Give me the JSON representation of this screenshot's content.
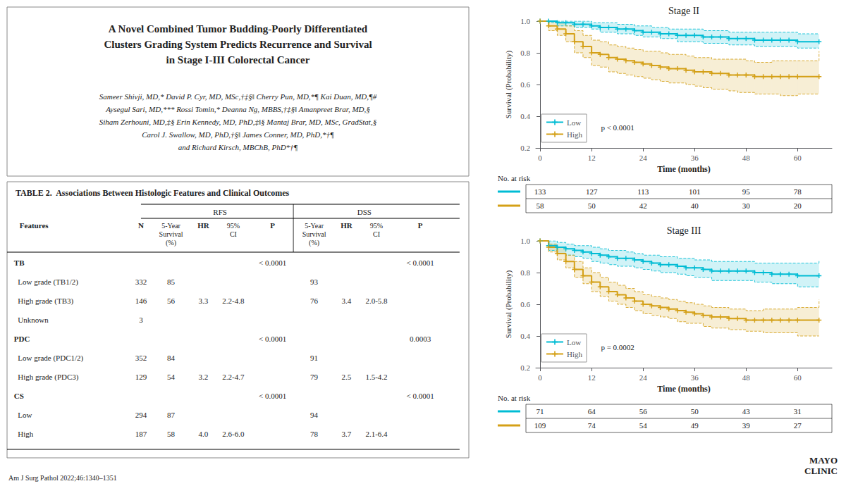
{
  "chart_data": [
    {
      "type": "text",
      "title": "A Novel Combined Tumor Budding-Poorly Differentiated\nClusters Grading System Predicts Recurrence and Survival\nin Stage I-III Colorectal Cancer",
      "annotations": [
        "Sameer Shivji, MD,* David P. Cyr, MD, MSc,†‡§‖ Cherry Pun, MD,*¶ Kai Duan, MD,¶#",
        "Aysegul Sari, MD,*** Rossi Tomin,* Deanna Ng, MBBS,†‡§‖ Amanpreet Brar, MD,§",
        "Siham Zerhouni, MD,‡§ Erin Kennedy, MD, PhD,‡‖§ Mantaj Brar, MD, MSc, GradStat,§",
        "Carol J. Swallow, MD, PhD,†§‖ James Conner, MD, PhD,*†¶",
        "and Richard Kirsch, MBChB, PhD*†¶"
      ]
    },
    {
      "type": "table",
      "title": "TABLE 2.  Associations Between Histologic Features and Clinical Outcomes",
      "columns": [
        "Features",
        "N",
        "5-Year\nSurvival\n(%)",
        "HR",
        "95%\nCI",
        "P",
        "5-Year\nSurvival\n(%)",
        "HR",
        "95%\nCI",
        "P"
      ],
      "column_groups": [
        null,
        null,
        "RFS",
        "RFS",
        "RFS",
        "RFS",
        "DSS",
        "DSS",
        "DSS",
        "DSS"
      ],
      "rows": [
        [
          "TB",
          null,
          null,
          null,
          null,
          "< 0.0001",
          null,
          null,
          null,
          "< 0.0001"
        ],
        [
          "  Low grade (TB1/2)",
          "332",
          "85",
          null,
          null,
          null,
          "93",
          null,
          null,
          null
        ],
        [
          "  High grade (TB3)",
          "146",
          "56",
          "3.3",
          "2.2-4.8",
          null,
          "76",
          "3.4",
          "2.0-5.8",
          null
        ],
        [
          "  Unknown",
          "3",
          null,
          null,
          null,
          null,
          null,
          null,
          null,
          null
        ],
        [
          "PDC",
          null,
          null,
          null,
          null,
          "< 0.0001",
          null,
          null,
          null,
          "0.0003"
        ],
        [
          "  Low grade (PDC1/2)",
          "352",
          "84",
          null,
          null,
          null,
          "91",
          null,
          null,
          null
        ],
        [
          "  High grade (PDC3)",
          "129",
          "54",
          "3.2",
          "2.2-4.7",
          null,
          "79",
          "2.5",
          "1.5-4.2",
          null
        ],
        [
          "CS",
          null,
          null,
          null,
          null,
          "< 0.0001",
          null,
          null,
          null,
          "< 0.0001"
        ],
        [
          "  Low",
          "294",
          "87",
          null,
          null,
          null,
          "94",
          null,
          null,
          null
        ],
        [
          "  High",
          "187",
          "58",
          "4.0",
          "2.6-6.0",
          null,
          "78",
          "3.7",
          "2.1-6.4",
          null
        ]
      ]
    },
    {
      "type": "step",
      "title": "Stage II",
      "x_label": "Time (months)",
      "y_label": "Survival (Probability)",
      "xlim": [
        -1,
        68
      ],
      "xticks": [
        0,
        12,
        24,
        36,
        48,
        60
      ],
      "ylim": [
        0.2,
        1.0
      ],
      "yticks": [
        0.2,
        0.4,
        0.6,
        0.8,
        {
          "value": 1,
          "label": "1.0"
        }
      ],
      "grid": false,
      "legend": "lower left",
      "marker": "+",
      "annotations": [
        "p < 0.0001"
      ],
      "at_risk_label": "No. at risk",
      "series": [
        {
          "name": "Low",
          "color": "#00bcd4",
          "x": [
            0,
            2,
            4,
            6,
            8,
            10,
            12,
            14,
            16,
            18,
            20,
            22,
            24,
            26,
            28,
            30,
            32,
            34,
            36,
            38,
            40,
            42,
            44,
            46,
            48,
            50,
            52,
            54,
            56,
            58,
            60,
            65
          ],
          "values": [
            1.0,
            1.0,
            0.99,
            0.99,
            0.98,
            0.98,
            0.97,
            0.96,
            0.96,
            0.95,
            0.95,
            0.94,
            0.93,
            0.93,
            0.92,
            0.92,
            0.91,
            0.91,
            0.91,
            0.9,
            0.9,
            0.9,
            0.89,
            0.89,
            0.89,
            0.88,
            0.88,
            0.88,
            0.88,
            0.88,
            0.87,
            0.87
          ],
          "ci_upper": [
            1.0,
            1.0,
            1.0,
            1.0,
            1.0,
            1.0,
            0.99,
            0.99,
            0.99,
            0.98,
            0.98,
            0.97,
            0.97,
            0.96,
            0.96,
            0.95,
            0.95,
            0.95,
            0.95,
            0.94,
            0.94,
            0.94,
            0.93,
            0.93,
            0.93,
            0.93,
            0.93,
            0.93,
            0.93,
            0.93,
            0.92,
            0.92
          ],
          "ci_lower": [
            1.0,
            0.99,
            0.97,
            0.97,
            0.96,
            0.96,
            0.95,
            0.93,
            0.93,
            0.92,
            0.92,
            0.91,
            0.9,
            0.9,
            0.89,
            0.89,
            0.87,
            0.87,
            0.87,
            0.86,
            0.86,
            0.86,
            0.85,
            0.85,
            0.85,
            0.84,
            0.84,
            0.84,
            0.84,
            0.84,
            0.83,
            0.83
          ],
          "at_risk": [
            133,
            127,
            113,
            101,
            95,
            78
          ]
        },
        {
          "name": "High",
          "color": "#d4a017",
          "x": [
            0,
            2,
            4,
            6,
            8,
            10,
            12,
            14,
            16,
            18,
            20,
            22,
            24,
            26,
            28,
            30,
            32,
            34,
            36,
            38,
            40,
            42,
            44,
            46,
            48,
            50,
            52,
            54,
            56,
            58,
            60,
            65
          ],
          "values": [
            1.0,
            0.97,
            0.95,
            0.92,
            0.87,
            0.84,
            0.8,
            0.79,
            0.77,
            0.76,
            0.75,
            0.74,
            0.73,
            0.72,
            0.71,
            0.7,
            0.7,
            0.69,
            0.68,
            0.68,
            0.67,
            0.67,
            0.66,
            0.66,
            0.66,
            0.65,
            0.65,
            0.65,
            0.65,
            0.65,
            0.65,
            0.65
          ],
          "ci_upper": [
            1.0,
            1.0,
            0.99,
            0.97,
            0.94,
            0.91,
            0.88,
            0.87,
            0.85,
            0.84,
            0.83,
            0.82,
            0.81,
            0.81,
            0.8,
            0.79,
            0.79,
            0.78,
            0.77,
            0.77,
            0.76,
            0.76,
            0.76,
            0.76,
            0.75,
            0.74,
            0.74,
            0.75,
            0.75,
            0.75,
            0.75,
            0.81
          ],
          "ci_lower": [
            1.0,
            0.94,
            0.91,
            0.87,
            0.8,
            0.77,
            0.72,
            0.71,
            0.68,
            0.67,
            0.66,
            0.65,
            0.64,
            0.63,
            0.62,
            0.61,
            0.61,
            0.6,
            0.59,
            0.58,
            0.57,
            0.57,
            0.56,
            0.55,
            0.55,
            0.54,
            0.54,
            0.54,
            0.53,
            0.53,
            0.54,
            0.54
          ],
          "at_risk": [
            58,
            50,
            42,
            40,
            30,
            20
          ]
        }
      ]
    },
    {
      "type": "step",
      "title": "Stage III",
      "x_label": "Time (months)",
      "y_label": "Survival (Probability)",
      "xlim": [
        -1,
        68
      ],
      "xticks": [
        0,
        12,
        24,
        36,
        48,
        60
      ],
      "ylim": [
        0.2,
        1.0
      ],
      "yticks": [
        0.2,
        0.4,
        0.6,
        0.8,
        {
          "value": 1,
          "label": "1.0"
        }
      ],
      "grid": false,
      "legend": "lower left",
      "marker": "+",
      "annotations": [
        "p = 0.0002"
      ],
      "at_risk_label": "No. at risk",
      "series": [
        {
          "name": "Low",
          "color": "#00bcd4",
          "x": [
            0,
            2,
            4,
            6,
            8,
            10,
            12,
            14,
            16,
            18,
            20,
            22,
            24,
            26,
            28,
            30,
            32,
            34,
            36,
            38,
            40,
            42,
            44,
            46,
            48,
            50,
            52,
            54,
            56,
            58,
            60,
            65
          ],
          "values": [
            1.0,
            0.97,
            0.96,
            0.95,
            0.94,
            0.93,
            0.92,
            0.91,
            0.9,
            0.89,
            0.89,
            0.88,
            0.87,
            0.86,
            0.85,
            0.85,
            0.84,
            0.83,
            0.83,
            0.82,
            0.81,
            0.81,
            0.81,
            0.81,
            0.81,
            0.8,
            0.8,
            0.79,
            0.79,
            0.79,
            0.78,
            0.78
          ],
          "ci_upper": [
            1.0,
            1.0,
            0.99,
            0.98,
            0.97,
            0.97,
            0.96,
            0.95,
            0.94,
            0.94,
            0.93,
            0.92,
            0.91,
            0.91,
            0.9,
            0.9,
            0.89,
            0.89,
            0.88,
            0.88,
            0.87,
            0.87,
            0.87,
            0.87,
            0.87,
            0.86,
            0.86,
            0.86,
            0.86,
            0.86,
            0.86,
            0.88
          ],
          "ci_lower": [
            1.0,
            0.94,
            0.92,
            0.91,
            0.9,
            0.89,
            0.87,
            0.86,
            0.85,
            0.84,
            0.84,
            0.83,
            0.82,
            0.81,
            0.8,
            0.8,
            0.79,
            0.78,
            0.77,
            0.77,
            0.75,
            0.75,
            0.75,
            0.75,
            0.75,
            0.74,
            0.74,
            0.73,
            0.73,
            0.73,
            0.71,
            0.71
          ],
          "at_risk": [
            71,
            64,
            56,
            50,
            43,
            31
          ]
        },
        {
          "name": "High",
          "color": "#d4a017",
          "x": [
            0,
            2,
            4,
            6,
            8,
            10,
            12,
            14,
            16,
            18,
            20,
            22,
            24,
            26,
            28,
            30,
            32,
            34,
            36,
            38,
            40,
            42,
            44,
            46,
            48,
            50,
            52,
            54,
            56,
            58,
            60,
            65
          ],
          "values": [
            1.0,
            0.96,
            0.92,
            0.87,
            0.82,
            0.78,
            0.74,
            0.71,
            0.68,
            0.66,
            0.64,
            0.62,
            0.6,
            0.59,
            0.58,
            0.57,
            0.56,
            0.55,
            0.54,
            0.53,
            0.52,
            0.52,
            0.51,
            0.51,
            0.5,
            0.5,
            0.5,
            0.5,
            0.5,
            0.5,
            0.5,
            0.5
          ],
          "ci_upper": [
            1.0,
            0.98,
            0.96,
            0.91,
            0.87,
            0.83,
            0.8,
            0.77,
            0.74,
            0.72,
            0.7,
            0.68,
            0.66,
            0.65,
            0.64,
            0.63,
            0.62,
            0.61,
            0.6,
            0.59,
            0.58,
            0.58,
            0.57,
            0.57,
            0.56,
            0.56,
            0.57,
            0.57,
            0.57,
            0.57,
            0.58,
            0.63
          ],
          "ci_lower": [
            1.0,
            0.93,
            0.88,
            0.83,
            0.77,
            0.73,
            0.68,
            0.65,
            0.62,
            0.6,
            0.58,
            0.56,
            0.54,
            0.53,
            0.52,
            0.51,
            0.49,
            0.48,
            0.48,
            0.46,
            0.45,
            0.45,
            0.44,
            0.44,
            0.43,
            0.43,
            0.42,
            0.42,
            0.42,
            0.42,
            0.4,
            0.4
          ],
          "at_risk": [
            109,
            74,
            54,
            49,
            39,
            27
          ]
        }
      ]
    },
    {
      "type": "text",
      "annotations": [
        "MAYO\nCLINIC",
        "Am J Surg Pathol 2022;46:1340–1351"
      ]
    }
  ]
}
